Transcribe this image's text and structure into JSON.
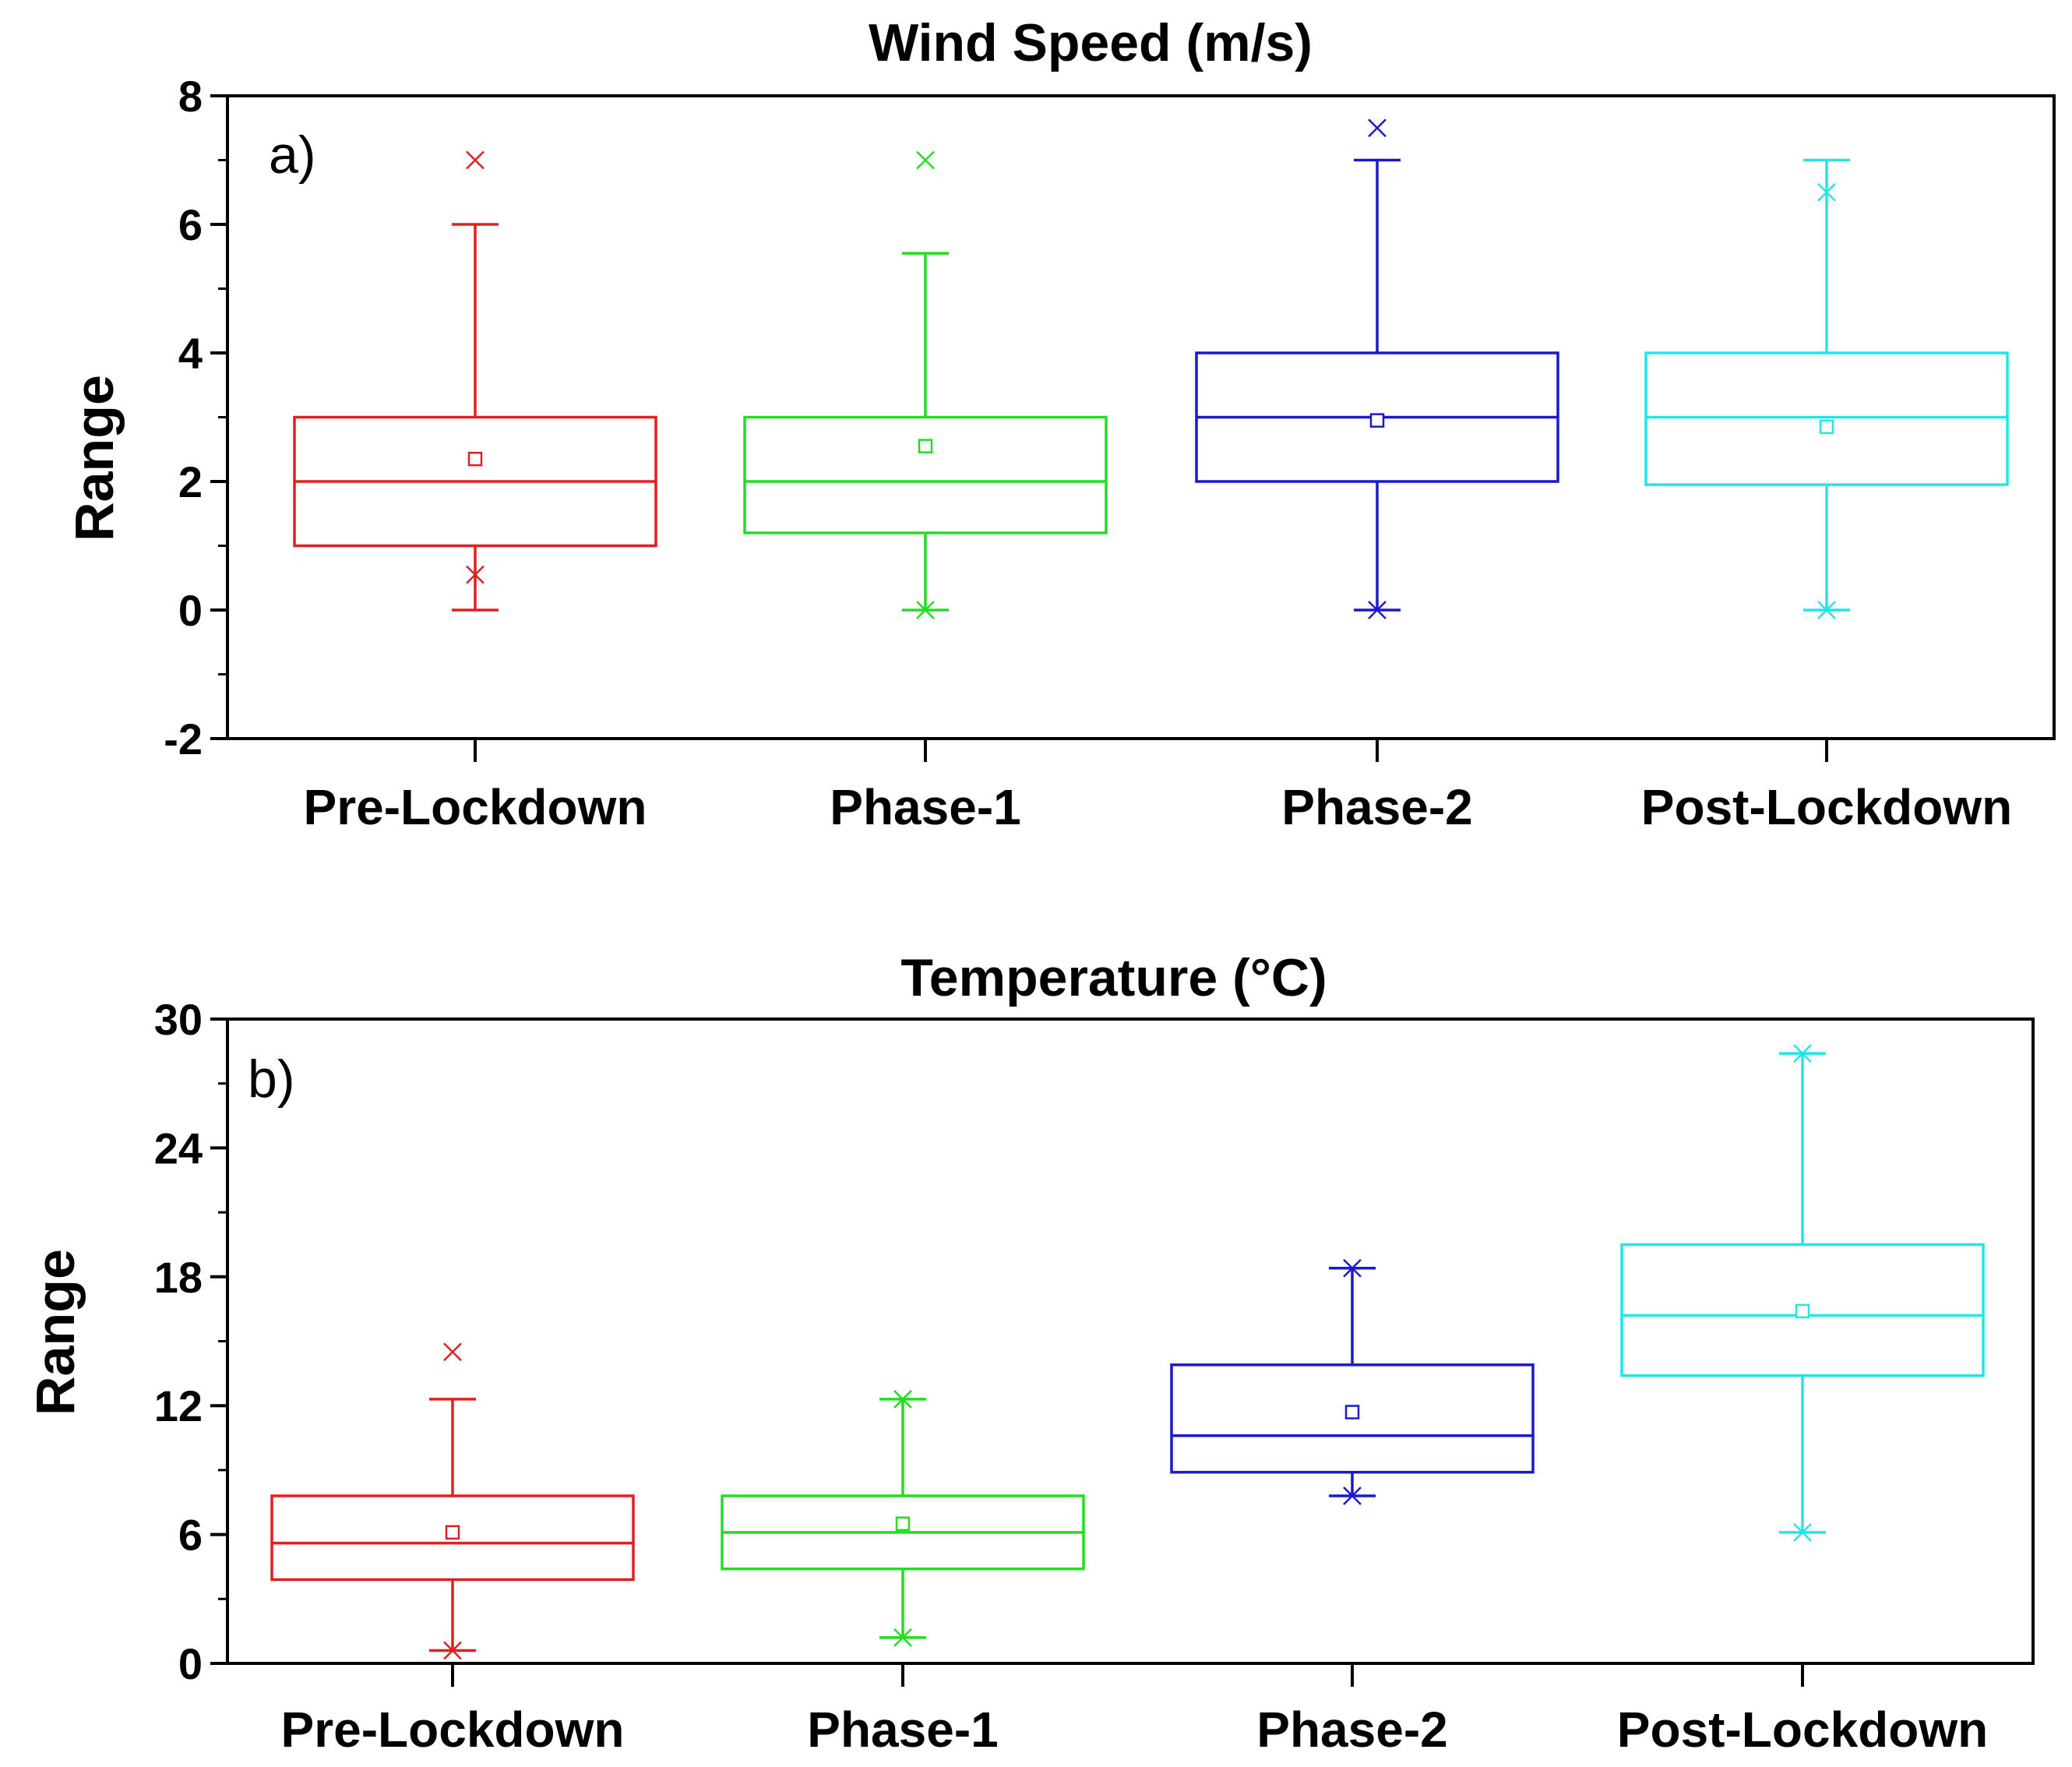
{
  "chart_data": [
    {
      "type": "box",
      "panel_label": "a)",
      "title": "Wind Speed (m/s)",
      "ylabel": "Range",
      "xlabel": "",
      "ylim": [
        -2,
        8
      ],
      "yticks": [
        -2,
        0,
        2,
        4,
        6,
        8
      ],
      "categories": [
        "Pre-Lockdown",
        "Phase-1",
        "Phase-2",
        "Post-Lockdown"
      ],
      "colors": [
        "#e02020",
        "#22dd22",
        "#1a1acc",
        "#22e6e6"
      ],
      "boxes": [
        {
          "whisker_low": 0,
          "q1": 1.0,
          "median": 2.0,
          "q3": 3.0,
          "whisker_high": 6.0,
          "mean": 2.35,
          "min_marker": 0.55,
          "max_marker": 7.0
        },
        {
          "whisker_low": 0,
          "q1": 1.2,
          "median": 2.0,
          "q3": 3.0,
          "whisker_high": 5.55,
          "mean": 2.55,
          "min_marker": 0,
          "max_marker": 7.0
        },
        {
          "whisker_low": 0,
          "q1": 2.0,
          "median": 3.0,
          "q3": 4.0,
          "whisker_high": 7.0,
          "mean": 2.95,
          "min_marker": 0,
          "max_marker": 7.5
        },
        {
          "whisker_low": 0,
          "q1": 1.95,
          "median": 3.0,
          "q3": 4.0,
          "whisker_high": 7.0,
          "mean": 2.85,
          "min_marker": 0,
          "max_marker": 6.5
        }
      ]
    },
    {
      "type": "box",
      "panel_label": "b)",
      "title": "Temperature (°C)",
      "ylabel": "Range",
      "xlabel": "",
      "ylim": [
        0,
        30
      ],
      "yticks": [
        0,
        6,
        12,
        18,
        24,
        30
      ],
      "categories": [
        "Pre-Lockdown",
        "Phase-1",
        "Phase-2",
        "Post-Lockdown"
      ],
      "colors": [
        "#e02020",
        "#22dd22",
        "#1a1acc",
        "#22e6e6"
      ],
      "boxes": [
        {
          "whisker_low": 0.6,
          "q1": 3.9,
          "median": 5.6,
          "q3": 7.8,
          "whisker_high": 12.3,
          "mean": 6.1,
          "min_marker": 0.6,
          "max_marker": 14.5
        },
        {
          "whisker_low": 1.2,
          "q1": 4.4,
          "median": 6.1,
          "q3": 7.8,
          "whisker_high": 12.3,
          "mean": 6.5,
          "min_marker": 1.2,
          "max_marker": 12.3
        },
        {
          "whisker_low": 7.8,
          "q1": 8.9,
          "median": 10.6,
          "q3": 13.9,
          "whisker_high": 18.4,
          "mean": 11.7,
          "min_marker": 7.8,
          "max_marker": 18.4
        },
        {
          "whisker_low": 6.1,
          "q1": 13.4,
          "median": 16.2,
          "q3": 19.5,
          "whisker_high": 28.4,
          "mean": 16.4,
          "min_marker": 6.1,
          "max_marker": 28.4
        }
      ]
    }
  ]
}
